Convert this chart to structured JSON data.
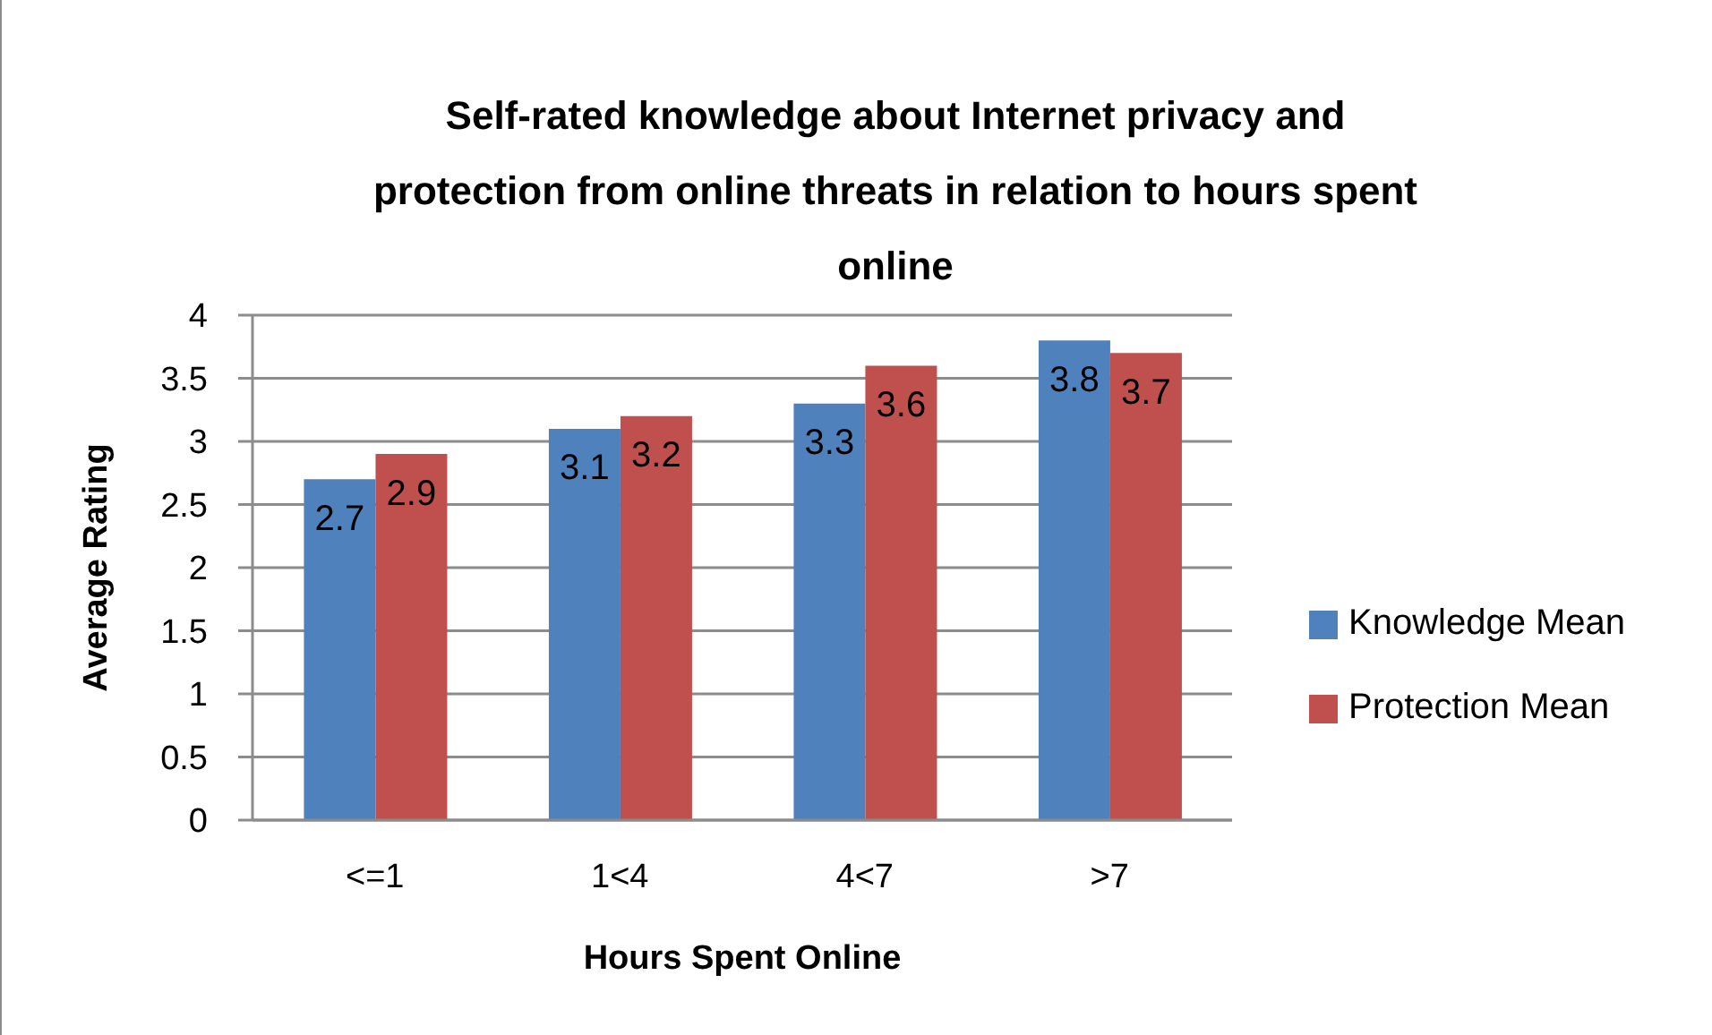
{
  "chart_data": {
    "type": "bar",
    "title": "Self-rated knowledge about Internet privacy and protection from online threats in relation to hours spent online",
    "xlabel": "Hours Spent Online",
    "ylabel": "Average Rating",
    "categories": [
      "<=1",
      "1<4",
      "4<7",
      ">7"
    ],
    "series": [
      {
        "name": "Knowledge Mean",
        "color": "#4f81bd",
        "values": [
          2.7,
          3.1,
          3.3,
          3.8
        ]
      },
      {
        "name": "Protection Mean",
        "color": "#c0504d",
        "values": [
          2.9,
          3.2,
          3.6,
          3.7
        ]
      }
    ],
    "ylim": [
      0,
      4
    ],
    "yticks": [
      0,
      0.5,
      1,
      1.5,
      2,
      2.5,
      3,
      3.5,
      4
    ],
    "grid": "y",
    "legend": "right",
    "data_labels": true
  }
}
